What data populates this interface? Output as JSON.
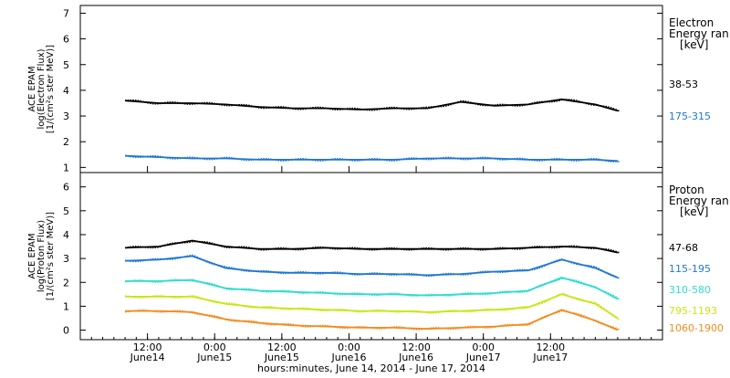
{
  "chart_data": [
    {
      "type": "scatter",
      "ylabel_lines": [
        "ACE EPAM",
        "log(Electron Flux)",
        "[1/(cm²s ster MeV)]"
      ],
      "legend_title_lines": [
        "Electron",
        "Energy ran",
        "[keV]"
      ],
      "ylim": [
        0.8,
        7.3
      ],
      "yticks": [
        1,
        2,
        3,
        4,
        5,
        6,
        7
      ],
      "series": [
        {
          "name": "38-53",
          "color": "#000000",
          "x": [
            0,
            6,
            12,
            18,
            24,
            30,
            36,
            42,
            48,
            54,
            60,
            66,
            72,
            78,
            84,
            88
          ],
          "values": [
            3.6,
            3.5,
            3.5,
            3.45,
            3.35,
            3.3,
            3.3,
            3.25,
            3.3,
            3.3,
            3.55,
            3.4,
            3.45,
            3.65,
            3.45,
            3.2
          ]
        },
        {
          "name": "175-315",
          "color": "#1f77d4",
          "x": [
            0,
            6,
            12,
            18,
            24,
            30,
            36,
            42,
            48,
            54,
            60,
            66,
            72,
            78,
            84,
            88
          ],
          "values": [
            1.45,
            1.4,
            1.35,
            1.35,
            1.3,
            1.3,
            1.3,
            1.3,
            1.3,
            1.35,
            1.35,
            1.35,
            1.3,
            1.3,
            1.3,
            1.25
          ]
        }
      ]
    },
    {
      "type": "scatter",
      "ylabel_lines": [
        "ACE EPAM",
        "log(Proton Flux)",
        "[1/(cm²s ster MeV)]"
      ],
      "legend_title_lines": [
        "Proton",
        "Energy ran",
        "[keV]"
      ],
      "ylim": [
        -0.4,
        6.6
      ],
      "yticks": [
        0,
        1,
        2,
        3,
        4,
        5,
        6
      ],
      "series": [
        {
          "name": "47-68",
          "color": "#000000",
          "x": [
            0,
            6,
            12,
            18,
            24,
            30,
            36,
            42,
            48,
            54,
            60,
            66,
            72,
            78,
            84,
            88
          ],
          "values": [
            3.45,
            3.5,
            3.75,
            3.5,
            3.4,
            3.4,
            3.45,
            3.4,
            3.4,
            3.4,
            3.4,
            3.4,
            3.45,
            3.5,
            3.45,
            3.25
          ]
        },
        {
          "name": "115-195",
          "color": "#1f77d4",
          "x": [
            0,
            6,
            12,
            18,
            24,
            30,
            36,
            42,
            48,
            54,
            60,
            66,
            72,
            78,
            84,
            88
          ],
          "values": [
            2.9,
            2.95,
            3.1,
            2.6,
            2.45,
            2.4,
            2.4,
            2.35,
            2.35,
            2.3,
            2.35,
            2.45,
            2.5,
            2.95,
            2.6,
            2.2
          ]
        },
        {
          "name": "310-580",
          "color": "#2ddcd0",
          "x": [
            0,
            6,
            12,
            18,
            24,
            30,
            36,
            42,
            48,
            54,
            60,
            66,
            72,
            78,
            84,
            88
          ],
          "values": [
            2.05,
            2.05,
            2.1,
            1.75,
            1.65,
            1.6,
            1.55,
            1.5,
            1.5,
            1.45,
            1.5,
            1.55,
            1.65,
            2.2,
            1.8,
            1.3
          ]
        },
        {
          "name": "795-1193",
          "color": "#c8e612",
          "x": [
            0,
            6,
            12,
            18,
            24,
            30,
            36,
            42,
            48,
            54,
            60,
            66,
            72,
            78,
            84,
            88
          ],
          "values": [
            1.4,
            1.4,
            1.4,
            1.1,
            0.95,
            0.9,
            0.85,
            0.8,
            0.8,
            0.75,
            0.8,
            0.85,
            0.95,
            1.5,
            1.1,
            0.5
          ]
        },
        {
          "name": "1060-1900",
          "color": "#f28c1e",
          "x": [
            0,
            6,
            12,
            18,
            24,
            30,
            36,
            42,
            48,
            54,
            60,
            66,
            72,
            78,
            84,
            88
          ],
          "values": [
            0.8,
            0.8,
            0.75,
            0.45,
            0.3,
            0.2,
            0.15,
            0.1,
            0.1,
            0.05,
            0.1,
            0.15,
            0.25,
            0.85,
            0.4,
            0.0
          ]
        }
      ]
    }
  ],
  "x_axis": {
    "xlim": [
      -8,
      96
    ],
    "ticks": [
      {
        "x": 4,
        "top": "12:00",
        "bottom": "June14"
      },
      {
        "x": 16,
        "top": "0:00",
        "bottom": "June15"
      },
      {
        "x": 28,
        "top": "12:00",
        "bottom": "June15"
      },
      {
        "x": 40,
        "top": "0:00",
        "bottom": "June16"
      },
      {
        "x": 52,
        "top": "12:00",
        "bottom": "June16"
      },
      {
        "x": 64,
        "top": "0:00",
        "bottom": "June17"
      },
      {
        "x": 76,
        "top": "12:00",
        "bottom": "June17"
      }
    ],
    "xlabel": "hours:minutes, June 14, 2014 - June 17, 2014"
  }
}
